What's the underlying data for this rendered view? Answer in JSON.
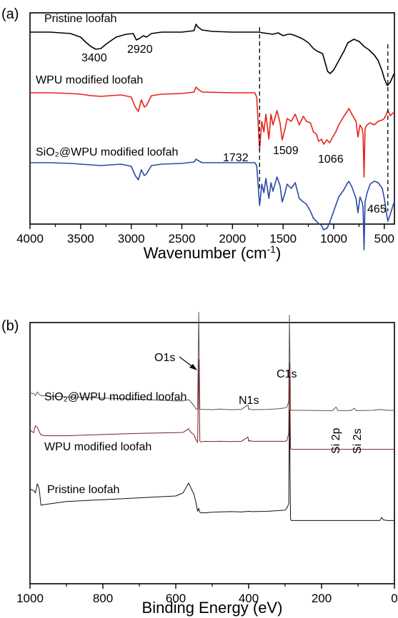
{
  "chart_data": [
    {
      "type": "line",
      "panel_label": "(a)",
      "xlabel": "Wavenumber (cm",
      "xlabel_sup": "-1",
      "xlabel_tail": ")",
      "xlim": [
        4000,
        400
      ],
      "x_reversed": true,
      "x_ticks": [
        4000,
        3500,
        3000,
        2500,
        2000,
        1500,
        1000,
        500
      ],
      "y_ticks_shown": false,
      "grid": false,
      "series": [
        {
          "name": "Pristine loofah",
          "color": "#000000",
          "x": [
            4000,
            3800,
            3600,
            3500,
            3450,
            3400,
            3350,
            3300,
            3250,
            3150,
            3050,
            2980,
            2950,
            2920,
            2880,
            2850,
            2800,
            2700,
            2500,
            2380,
            2360,
            2340,
            2300,
            2200,
            2000,
            1800,
            1740,
            1700,
            1650,
            1600,
            1550,
            1500,
            1450,
            1420,
            1380,
            1330,
            1300,
            1250,
            1200,
            1160,
            1110,
            1060,
            1035,
            1000,
            950,
            900,
            860,
            800,
            750,
            700,
            650,
            600,
            560,
            520,
            500,
            480,
            470,
            440,
            410,
            400
          ],
          "y": [
            0,
            0,
            -2,
            -7,
            -14,
            -20,
            -24,
            -23,
            -17,
            -7,
            -3,
            -2,
            -11,
            -9,
            -5,
            -7,
            -2,
            0,
            0,
            2,
            11,
            7,
            3,
            1,
            0,
            0,
            0,
            -1,
            -2,
            -3,
            -1,
            -5,
            -3,
            -3,
            -5,
            -8,
            -10,
            -15,
            -23,
            -27,
            -30,
            -55,
            -58,
            -53,
            -40,
            -27,
            -15,
            -10,
            -13,
            -20,
            -25,
            -32,
            -40,
            -55,
            -65,
            -72,
            -75,
            -70,
            -60,
            -58
          ]
        },
        {
          "name": "WPU modified loofah",
          "color": "#e8221c",
          "x": [
            4000,
            3800,
            3600,
            3500,
            3400,
            3300,
            3200,
            3100,
            3000,
            2960,
            2930,
            2900,
            2870,
            2850,
            2800,
            2700,
            2500,
            2380,
            2360,
            2340,
            2300,
            2000,
            1780,
            1760,
            1732,
            1710,
            1690,
            1670,
            1640,
            1620,
            1600,
            1560,
            1530,
            1509,
            1480,
            1460,
            1420,
            1380,
            1340,
            1300,
            1270,
            1230,
            1200,
            1170,
            1150,
            1120,
            1100,
            1066,
            1040,
            1010,
            980,
            950,
            900,
            870,
            850,
            820,
            780,
            760,
            740,
            720,
            710,
            700,
            690,
            670,
            640,
            600,
            560,
            520,
            500,
            480,
            465,
            440,
            410,
            400
          ],
          "y": [
            0,
            0,
            -1,
            -2,
            -4,
            -5,
            -4,
            -3,
            -6,
            -20,
            -26,
            -10,
            -20,
            -18,
            -4,
            -2,
            -1,
            1,
            8,
            5,
            1,
            0,
            0,
            -6,
            -80,
            -40,
            -55,
            -30,
            -65,
            -30,
            -45,
            -25,
            -42,
            -66,
            -50,
            -36,
            -40,
            -30,
            -45,
            -33,
            -40,
            -42,
            -55,
            -58,
            -68,
            -65,
            -72,
            -66,
            -70,
            -62,
            -55,
            -45,
            -33,
            -27,
            -22,
            -30,
            -40,
            -62,
            -45,
            -50,
            -58,
            -118,
            -50,
            -45,
            -42,
            -45,
            -40,
            -38,
            -36,
            -30,
            -25,
            -32,
            -28,
            -28
          ]
        },
        {
          "name": "SiO₂@WPU modified loofah",
          "color": "#2b4aa5",
          "x": [
            4000,
            3800,
            3600,
            3500,
            3400,
            3300,
            3200,
            3100,
            3000,
            2960,
            2930,
            2900,
            2870,
            2850,
            2800,
            2700,
            2500,
            2380,
            2360,
            2340,
            2300,
            2000,
            1780,
            1760,
            1732,
            1710,
            1690,
            1670,
            1640,
            1620,
            1600,
            1560,
            1530,
            1509,
            1480,
            1460,
            1420,
            1380,
            1340,
            1300,
            1270,
            1230,
            1200,
            1170,
            1150,
            1120,
            1100,
            1066,
            1040,
            1010,
            980,
            950,
            900,
            870,
            850,
            820,
            780,
            760,
            740,
            720,
            710,
            700,
            690,
            670,
            640,
            600,
            560,
            520,
            500,
            480,
            465,
            440,
            410,
            400
          ],
          "y": [
            0,
            0,
            -1,
            -2,
            -3,
            -4,
            -3,
            -2,
            -5,
            -18,
            -24,
            -10,
            -18,
            -16,
            -4,
            -2,
            -1,
            1,
            5,
            3,
            0,
            0,
            0,
            -4,
            -60,
            -30,
            -42,
            -22,
            -50,
            -28,
            -40,
            -20,
            -32,
            -55,
            -42,
            -30,
            -36,
            -28,
            -50,
            -55,
            -58,
            -68,
            -78,
            -82,
            -85,
            -88,
            -94,
            -92,
            -84,
            -72,
            -60,
            -48,
            -38,
            -30,
            -26,
            -34,
            -50,
            -70,
            -48,
            -55,
            -62,
            -122,
            -55,
            -42,
            -30,
            -26,
            -28,
            -36,
            -50,
            -70,
            -82,
            -72,
            -58,
            -55
          ]
        }
      ],
      "annotations": [
        "3400",
        "2920",
        "1732",
        "1509",
        "1066",
        "465"
      ],
      "reference_lines_x": [
        1732,
        465
      ]
    },
    {
      "type": "line",
      "panel_label": "(b)",
      "xlabel": "Binding Energy (eV)",
      "xlim": [
        1000,
        0
      ],
      "x_reversed": true,
      "x_ticks": [
        1000,
        800,
        600,
        400,
        200,
        0
      ],
      "y_ticks_shown": false,
      "grid": false,
      "series": [
        {
          "name": "SiO₂@WPU modified loofah",
          "color": "#555555",
          "x": [
            1000,
            990,
            985,
            980,
            975,
            970,
            960,
            900,
            800,
            700,
            600,
            580,
            565,
            560,
            550,
            545,
            540,
            537,
            534,
            532,
            520,
            500,
            480,
            450,
            420,
            402,
            400,
            398,
            390,
            350,
            320,
            300,
            295,
            290,
            288,
            285,
            283,
            280,
            270,
            250,
            200,
            170,
            160,
            155,
            150,
            120,
            110,
            105,
            100,
            60,
            40,
            20,
            10,
            0
          ],
          "y": [
            56,
            55,
            48,
            60,
            52,
            48,
            47,
            44,
            40,
            36,
            31,
            31,
            35,
            29,
            15,
            5,
            3,
            320,
            4,
            3,
            3,
            2,
            4,
            2,
            3,
            18,
            2,
            5,
            2,
            3,
            5,
            8,
            10,
            30,
            310,
            2,
            0,
            0,
            0,
            0,
            -1,
            -1,
            11,
            -1,
            -1,
            -1,
            7,
            -1,
            -1,
            0,
            3,
            0,
            0,
            0
          ]
        },
        {
          "name": "WPU modified loofah",
          "color": "#7b2226",
          "x": [
            1000,
            990,
            985,
            980,
            975,
            970,
            960,
            900,
            800,
            700,
            600,
            580,
            565,
            560,
            550,
            545,
            540,
            537,
            534,
            532,
            520,
            500,
            480,
            450,
            420,
            402,
            400,
            398,
            390,
            350,
            320,
            300,
            295,
            290,
            288,
            285,
            283,
            280,
            270,
            250,
            200,
            170,
            160,
            155,
            150,
            120,
            100,
            60,
            40,
            20,
            10,
            0
          ],
          "y": [
            -30,
            -38,
            -15,
            -20,
            -35,
            -45,
            -48,
            -48,
            -44,
            -40,
            -38,
            -37,
            -25,
            -35,
            -45,
            -60,
            -70,
            200,
            -65,
            -68,
            -66,
            -67,
            -66,
            -67,
            -66,
            -52,
            -66,
            -63,
            -66,
            -66,
            -66,
            -66,
            -64,
            -40,
            190,
            -90,
            -92,
            -92,
            -92,
            -92,
            -92,
            -92,
            -90,
            -92,
            -92,
            -92,
            -92,
            -92,
            -92,
            -92,
            -92,
            -92
          ]
        },
        {
          "name": "Pristine loofah",
          "color": "#111111",
          "x": [
            1000,
            990,
            985,
            980,
            975,
            970,
            960,
            900,
            800,
            700,
            600,
            580,
            565,
            560,
            550,
            545,
            540,
            537,
            534,
            532,
            520,
            500,
            480,
            450,
            420,
            400,
            390,
            350,
            320,
            300,
            295,
            290,
            288,
            285,
            283,
            280,
            270,
            250,
            200,
            170,
            150,
            120,
            100,
            60,
            40,
            35,
            30,
            20,
            10,
            0
          ],
          "y": [
            -78,
            -82,
            -90,
            -60,
            -75,
            -130,
            -128,
            -118,
            -112,
            -106,
            -100,
            -90,
            -58,
            -70,
            -95,
            -120,
            -150,
            -140,
            -153,
            -155,
            -155,
            -153,
            -152,
            -151,
            -152,
            -150,
            -151,
            -150,
            -148,
            -146,
            -140,
            -125,
            180,
            -175,
            -180,
            -180,
            -180,
            -180,
            -180,
            -180,
            -180,
            -180,
            -180,
            -180,
            -180,
            -170,
            -178,
            -180,
            -180,
            -180
          ]
        }
      ],
      "annotations": [
        "O1s",
        "C1s",
        "N1s",
        "Si 2p",
        "Si 2s"
      ]
    }
  ]
}
